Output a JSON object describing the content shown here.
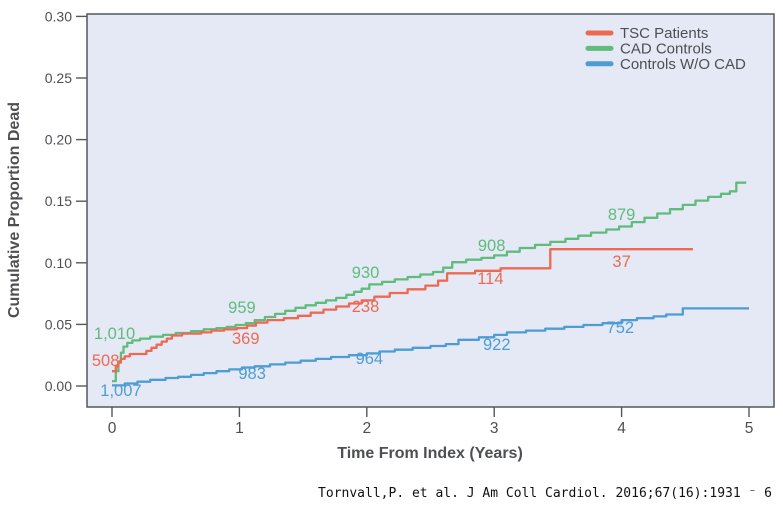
{
  "figure": {
    "citation": "Tornvall,P. et al. J Am Coll Cardiol. 2016;67(16):1931 ⁻ 6"
  },
  "chart_data": {
    "type": "line",
    "subtype": "kaplan-meier-step-curves",
    "title": "",
    "xlabel": "Time From Index (Years)",
    "ylabel": "Cumulative Proportion Dead",
    "xlim": [
      0,
      5
    ],
    "ylim": [
      0,
      0.3
    ],
    "xticks": [
      0,
      1,
      2,
      3,
      4,
      5
    ],
    "ytick_labels": [
      "0.00",
      "0.05",
      "0.10",
      "0.15",
      "0.20",
      "0.25",
      "0.30"
    ],
    "grid": false,
    "plot_background": "#e4e9f5",
    "axis_color": "#55575c",
    "text_color": "#4d4f53",
    "legend": {
      "position": "top-right-inside"
    },
    "series": [
      {
        "name": "TSC Patients",
        "color": "#ed6a52",
        "at_risk_numbers": [
          "508",
          "369",
          "238",
          "114",
          "37"
        ],
        "labels": [
          {
            "text": "508",
            "t": -0.05,
            "v": 0.021
          },
          {
            "text": "369",
            "t": 1.05,
            "v": 0.039
          },
          {
            "text": "238",
            "t": 1.99,
            "v": 0.065
          },
          {
            "text": "114",
            "t": 2.97,
            "v": 0.0877
          },
          {
            "text": "37",
            "t": 4.0,
            "v": 0.1015
          }
        ],
        "points": [
          [
            0,
            0.012
          ],
          [
            0.03,
            0.016
          ],
          [
            0.05,
            0.019
          ],
          [
            0.07,
            0.022
          ],
          [
            0.1,
            0.024
          ],
          [
            0.14,
            0.026
          ],
          [
            0.27,
            0.0285
          ],
          [
            0.31,
            0.031
          ],
          [
            0.35,
            0.0335
          ],
          [
            0.39,
            0.036
          ],
          [
            0.43,
            0.0385
          ],
          [
            0.47,
            0.041
          ],
          [
            0.55,
            0.0425
          ],
          [
            0.7,
            0.0435
          ],
          [
            0.78,
            0.045
          ],
          [
            0.88,
            0.046
          ],
          [
            0.98,
            0.047
          ],
          [
            1.06,
            0.049
          ],
          [
            1.13,
            0.0515
          ],
          [
            1.22,
            0.0535
          ],
          [
            1.35,
            0.055
          ],
          [
            1.46,
            0.057
          ],
          [
            1.56,
            0.0595
          ],
          [
            1.66,
            0.062
          ],
          [
            1.76,
            0.0645
          ],
          [
            1.86,
            0.067
          ],
          [
            1.96,
            0.0695
          ],
          [
            2.06,
            0.0725
          ],
          [
            2.18,
            0.0755
          ],
          [
            2.32,
            0.0785
          ],
          [
            2.46,
            0.0815
          ],
          [
            2.56,
            0.0855
          ],
          [
            2.63,
            0.0915
          ],
          [
            2.85,
            0.0935
          ],
          [
            3.05,
            0.0955
          ],
          [
            3.44,
            0.111
          ],
          [
            4.56,
            0.111
          ]
        ]
      },
      {
        "name": "CAD Controls",
        "color": "#61bb7d",
        "at_risk_numbers": [
          "1,010",
          "959",
          "930",
          "908",
          "879"
        ],
        "labels": [
          {
            "text": "1,010",
            "t": 0.02,
            "v": 0.043
          },
          {
            "text": "959",
            "t": 1.02,
            "v": 0.0641
          },
          {
            "text": "930",
            "t": 1.99,
            "v": 0.0925
          },
          {
            "text": "908",
            "t": 2.98,
            "v": 0.1145
          },
          {
            "text": "879",
            "t": 4.0,
            "v": 0.1396
          }
        ],
        "points": [
          [
            0,
            0.004
          ],
          [
            0.03,
            0.012
          ],
          [
            0.05,
            0.02
          ],
          [
            0.07,
            0.027
          ],
          [
            0.09,
            0.032
          ],
          [
            0.12,
            0.035
          ],
          [
            0.16,
            0.037
          ],
          [
            0.22,
            0.0385
          ],
          [
            0.3,
            0.04
          ],
          [
            0.4,
            0.0415
          ],
          [
            0.5,
            0.043
          ],
          [
            0.62,
            0.0445
          ],
          [
            0.72,
            0.046
          ],
          [
            0.82,
            0.047
          ],
          [
            0.9,
            0.048
          ],
          [
            0.97,
            0.0495
          ],
          [
            1.05,
            0.051
          ],
          [
            1.12,
            0.0535
          ],
          [
            1.2,
            0.056
          ],
          [
            1.28,
            0.0585
          ],
          [
            1.36,
            0.061
          ],
          [
            1.44,
            0.0635
          ],
          [
            1.52,
            0.0655
          ],
          [
            1.6,
            0.0675
          ],
          [
            1.68,
            0.0695
          ],
          [
            1.76,
            0.0715
          ],
          [
            1.84,
            0.074
          ],
          [
            1.9,
            0.0765
          ],
          [
            1.96,
            0.079
          ],
          [
            2.02,
            0.0825
          ],
          [
            2.12,
            0.0845
          ],
          [
            2.22,
            0.0865
          ],
          [
            2.32,
            0.0885
          ],
          [
            2.42,
            0.0905
          ],
          [
            2.52,
            0.0925
          ],
          [
            2.6,
            0.096
          ],
          [
            2.67,
            0.1005
          ],
          [
            2.78,
            0.1025
          ],
          [
            2.9,
            0.104
          ],
          [
            3.0,
            0.106
          ],
          [
            3.1,
            0.109
          ],
          [
            3.2,
            0.112
          ],
          [
            3.32,
            0.1145
          ],
          [
            3.44,
            0.117
          ],
          [
            3.56,
            0.1195
          ],
          [
            3.66,
            0.122
          ],
          [
            3.76,
            0.1245
          ],
          [
            3.88,
            0.127
          ],
          [
            3.98,
            0.1295
          ],
          [
            4.08,
            0.133
          ],
          [
            4.18,
            0.1365
          ],
          [
            4.28,
            0.14
          ],
          [
            4.38,
            0.1435
          ],
          [
            4.48,
            0.147
          ],
          [
            4.58,
            0.1505
          ],
          [
            4.68,
            0.1535
          ],
          [
            4.78,
            0.156
          ],
          [
            4.85,
            0.158
          ],
          [
            4.9,
            0.165
          ],
          [
            4.97,
            0.166
          ]
        ]
      },
      {
        "name": "Controls W/O CAD",
        "color": "#4d9dd4",
        "at_risk_numbers": [
          "1,007",
          "983",
          "964",
          "922",
          "752"
        ],
        "labels": [
          {
            "text": "1,007",
            "t": 0.07,
            "v": -0.0032
          },
          {
            "text": "983",
            "t": 1.1,
            "v": 0.0105
          },
          {
            "text": "964",
            "t": 2.02,
            "v": 0.0227
          },
          {
            "text": "922",
            "t": 3.02,
            "v": 0.034
          },
          {
            "text": "752",
            "t": 3.99,
            "v": 0.0479
          }
        ],
        "points": [
          [
            0,
            0.0005
          ],
          [
            0.1,
            0.002
          ],
          [
            0.2,
            0.0035
          ],
          [
            0.3,
            0.005
          ],
          [
            0.42,
            0.0065
          ],
          [
            0.52,
            0.0075
          ],
          [
            0.62,
            0.009
          ],
          [
            0.72,
            0.0105
          ],
          [
            0.82,
            0.012
          ],
          [
            0.92,
            0.0135
          ],
          [
            1.02,
            0.015
          ],
          [
            1.12,
            0.016
          ],
          [
            1.24,
            0.0175
          ],
          [
            1.36,
            0.019
          ],
          [
            1.48,
            0.0205
          ],
          [
            1.6,
            0.022
          ],
          [
            1.72,
            0.0235
          ],
          [
            1.86,
            0.025
          ],
          [
            2.0,
            0.0265
          ],
          [
            2.1,
            0.028
          ],
          [
            2.22,
            0.0295
          ],
          [
            2.36,
            0.031
          ],
          [
            2.5,
            0.0325
          ],
          [
            2.62,
            0.034
          ],
          [
            2.72,
            0.0375
          ],
          [
            2.88,
            0.0395
          ],
          [
            3.0,
            0.0415
          ],
          [
            3.1,
            0.0435
          ],
          [
            3.25,
            0.045
          ],
          [
            3.4,
            0.0465
          ],
          [
            3.55,
            0.048
          ],
          [
            3.7,
            0.0495
          ],
          [
            3.85,
            0.051
          ],
          [
            4.0,
            0.0535
          ],
          [
            4.12,
            0.055
          ],
          [
            4.25,
            0.0565
          ],
          [
            4.35,
            0.058
          ],
          [
            4.48,
            0.063
          ],
          [
            5.0,
            0.063
          ]
        ]
      }
    ]
  }
}
